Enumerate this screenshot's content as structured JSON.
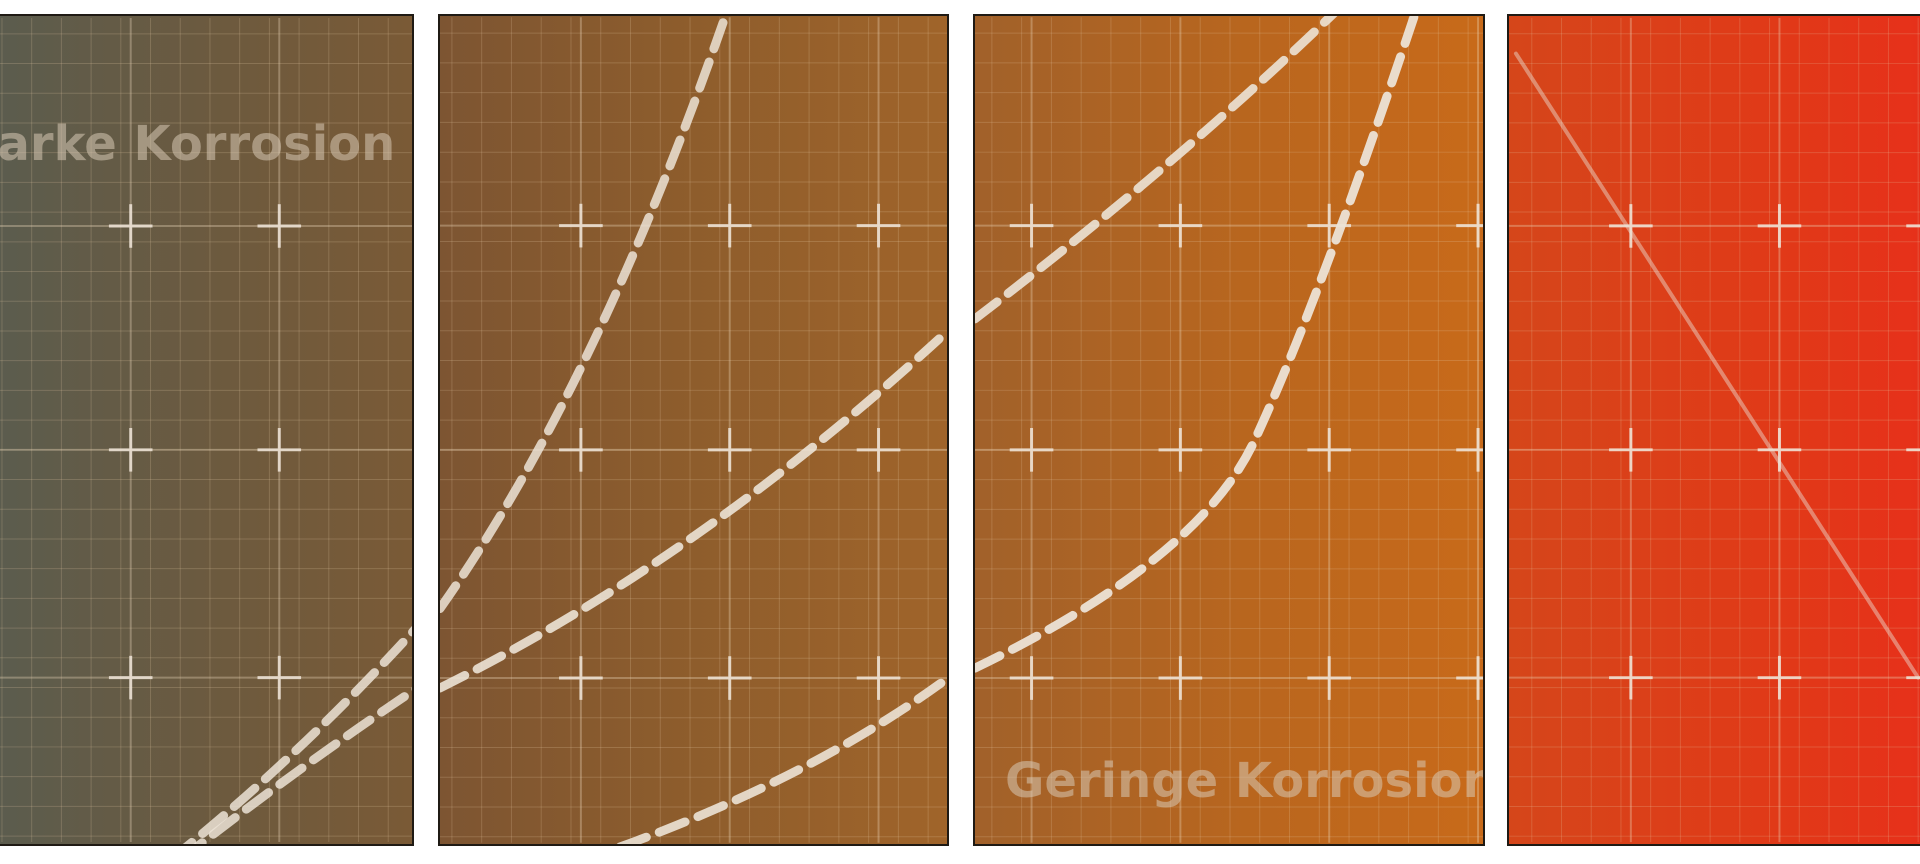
{
  "labels": {
    "top": "Starke Korrosion",
    "bottom": "Geringe Korrosion"
  },
  "colors": {
    "curve": "#ece3d6",
    "grid_minor": "rgba(230,205,170,0.22)",
    "grid_major": "rgba(235,215,185,0.35)",
    "cross": "#f0e6da"
  }
}
